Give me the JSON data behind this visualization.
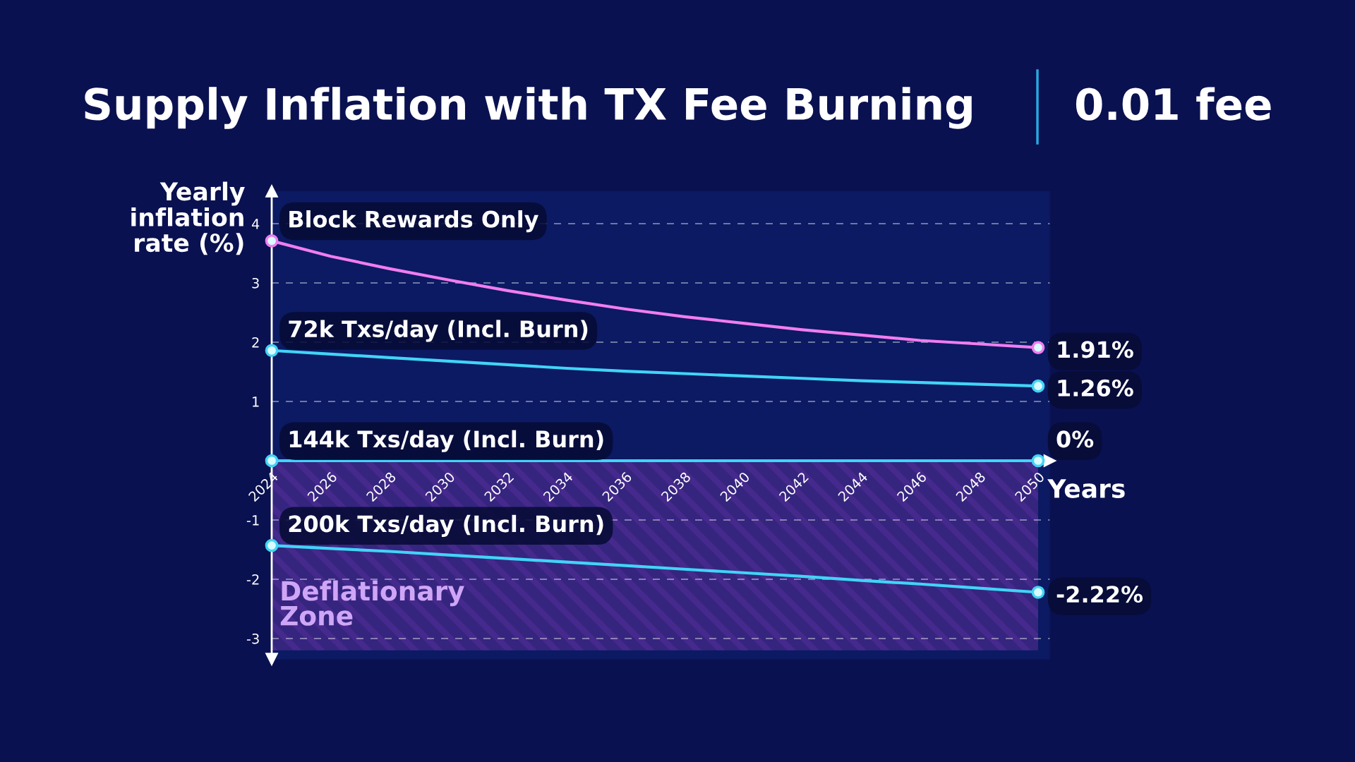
{
  "chart_data": {
    "type": "line",
    "title": "Supply Inflation with TX Fee Burning",
    "subtitle": "0.01 fee",
    "xlabel": "Years",
    "ylabel": "Yearly\ninflation\nrate (%)",
    "x": [
      2024,
      2026,
      2028,
      2030,
      2032,
      2034,
      2036,
      2038,
      2040,
      2042,
      2044,
      2046,
      2048,
      2050
    ],
    "series": [
      {
        "name": "Block Rewards Only",
        "color": "#f27cf0",
        "values": [
          3.71,
          3.45,
          3.24,
          3.05,
          2.87,
          2.71,
          2.56,
          2.43,
          2.32,
          2.21,
          2.12,
          2.03,
          1.97,
          1.91
        ]
      },
      {
        "name": "72k Txs/day (Incl. Burn)",
        "color": "#41d4f7",
        "values": [
          1.86,
          1.8,
          1.74,
          1.68,
          1.62,
          1.56,
          1.51,
          1.47,
          1.43,
          1.39,
          1.35,
          1.32,
          1.29,
          1.26
        ]
      },
      {
        "name": "144k Txs/day (Incl. Burn)",
        "color": "#41d4f7",
        "values": [
          0,
          0,
          0,
          0,
          0,
          0,
          0,
          0,
          0,
          0,
          0,
          0,
          0,
          0
        ]
      },
      {
        "name": "200k Txs/day (Incl. Burn)",
        "color": "#41d4f7",
        "values": [
          -1.43,
          -1.48,
          -1.53,
          -1.59,
          -1.65,
          -1.71,
          -1.77,
          -1.83,
          -1.89,
          -1.95,
          -2.02,
          -2.08,
          -2.15,
          -2.22
        ]
      },
      {
        "type": "scatter",
        "marker": "circle",
        "color": "#f27cf0",
        "values": [
          3.71,
          null,
          null,
          null,
          null,
          null,
          null,
          null,
          null,
          null,
          null,
          null,
          null,
          1.91
        ],
        "value_labels": [
          null,
          null,
          null,
          null,
          null,
          null,
          null,
          null,
          null,
          null,
          null,
          null,
          null,
          "1.91%"
        ]
      },
      {
        "type": "scatter",
        "marker": "circle",
        "color": "#41d4f7",
        "values": [
          1.86,
          null,
          null,
          null,
          null,
          null,
          null,
          null,
          null,
          null,
          null,
          null,
          null,
          1.26
        ],
        "value_labels": [
          null,
          null,
          null,
          null,
          null,
          null,
          null,
          null,
          null,
          null,
          null,
          null,
          null,
          "1.26%"
        ]
      },
      {
        "type": "scatter",
        "marker": "circle",
        "color": "#41d4f7",
        "values": [
          0,
          null,
          null,
          null,
          null,
          null,
          null,
          null,
          null,
          null,
          null,
          null,
          null,
          0
        ],
        "value_labels": [
          null,
          null,
          null,
          null,
          null,
          null,
          null,
          null,
          null,
          null,
          null,
          null,
          null,
          "0%"
        ]
      },
      {
        "type": "scatter",
        "marker": "circle",
        "color": "#41d4f7",
        "values": [
          -1.43,
          null,
          null,
          null,
          null,
          null,
          null,
          null,
          null,
          null,
          null,
          null,
          null,
          -2.22
        ],
        "value_labels": [
          null,
          null,
          null,
          null,
          null,
          null,
          null,
          null,
          null,
          null,
          null,
          null,
          null,
          "-2.22%"
        ]
      }
    ],
    "bands": [
      {
        "axis": "y",
        "from": 0,
        "to": -3.2,
        "label": "Deflationary\nZone",
        "color": "#35257f"
      }
    ],
    "xlim": [
      2024,
      2050.4
    ],
    "ylim": [
      -3.35,
      4.55
    ],
    "xticks": [
      2024,
      2026,
      2028,
      2030,
      2032,
      2034,
      2036,
      2038,
      2040,
      2042,
      2044,
      2046,
      2048,
      2050
    ],
    "yticks": [
      -3,
      -2,
      -1,
      {
        "value": 0,
        "label": null
      },
      1,
      2,
      3,
      4
    ],
    "grid": "y"
  }
}
